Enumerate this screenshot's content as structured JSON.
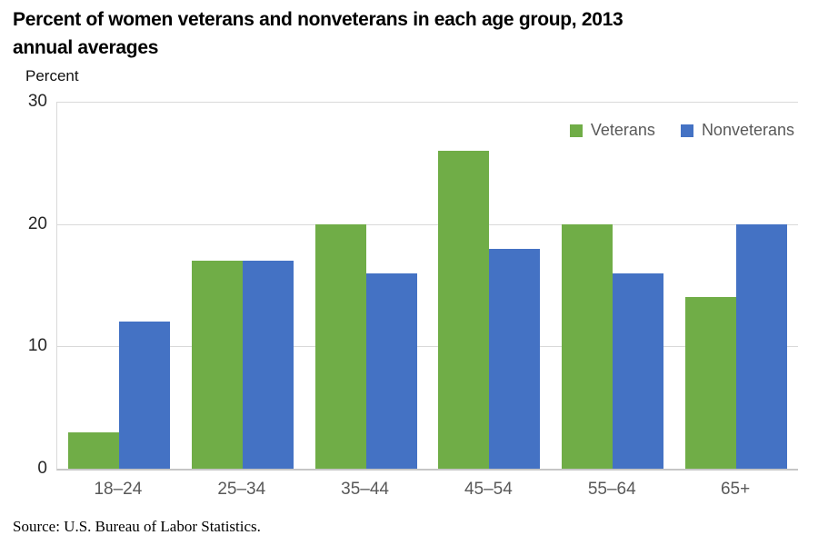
{
  "title": {
    "line1": "Percent of women veterans and nonveterans in each age group, 2013",
    "line2": "annual averages"
  },
  "source": "Source: U.S. Bureau of Labor Statistics.",
  "colors": {
    "veterans_green": "#70AD47",
    "nonveterans_blue": "#4472C4",
    "gridline": "#D9D9D9",
    "axis_line": "#C6C6C6",
    "tick_label_gray": "#595959"
  },
  "chart_data": {
    "type": "bar",
    "title": "Percent of women veterans and nonveterans in each age group, 2013 annual averages",
    "xlabel": "",
    "ylabel": "Percent",
    "categories": [
      "18–24",
      "25–34",
      "35–44",
      "45–54",
      "55–64",
      "65+"
    ],
    "series": [
      {
        "name": "Veterans",
        "color": "#70AD47",
        "values": [
          3,
          17,
          20,
          26,
          20,
          14
        ]
      },
      {
        "name": "Nonveterans",
        "color": "#4472C4",
        "values": [
          12,
          17,
          16,
          18,
          16,
          20
        ]
      }
    ],
    "ylim": [
      0,
      30
    ],
    "yticks": [
      0,
      10,
      20,
      30
    ],
    "grid": "horizontal",
    "legend_position": "top-right-inside"
  }
}
